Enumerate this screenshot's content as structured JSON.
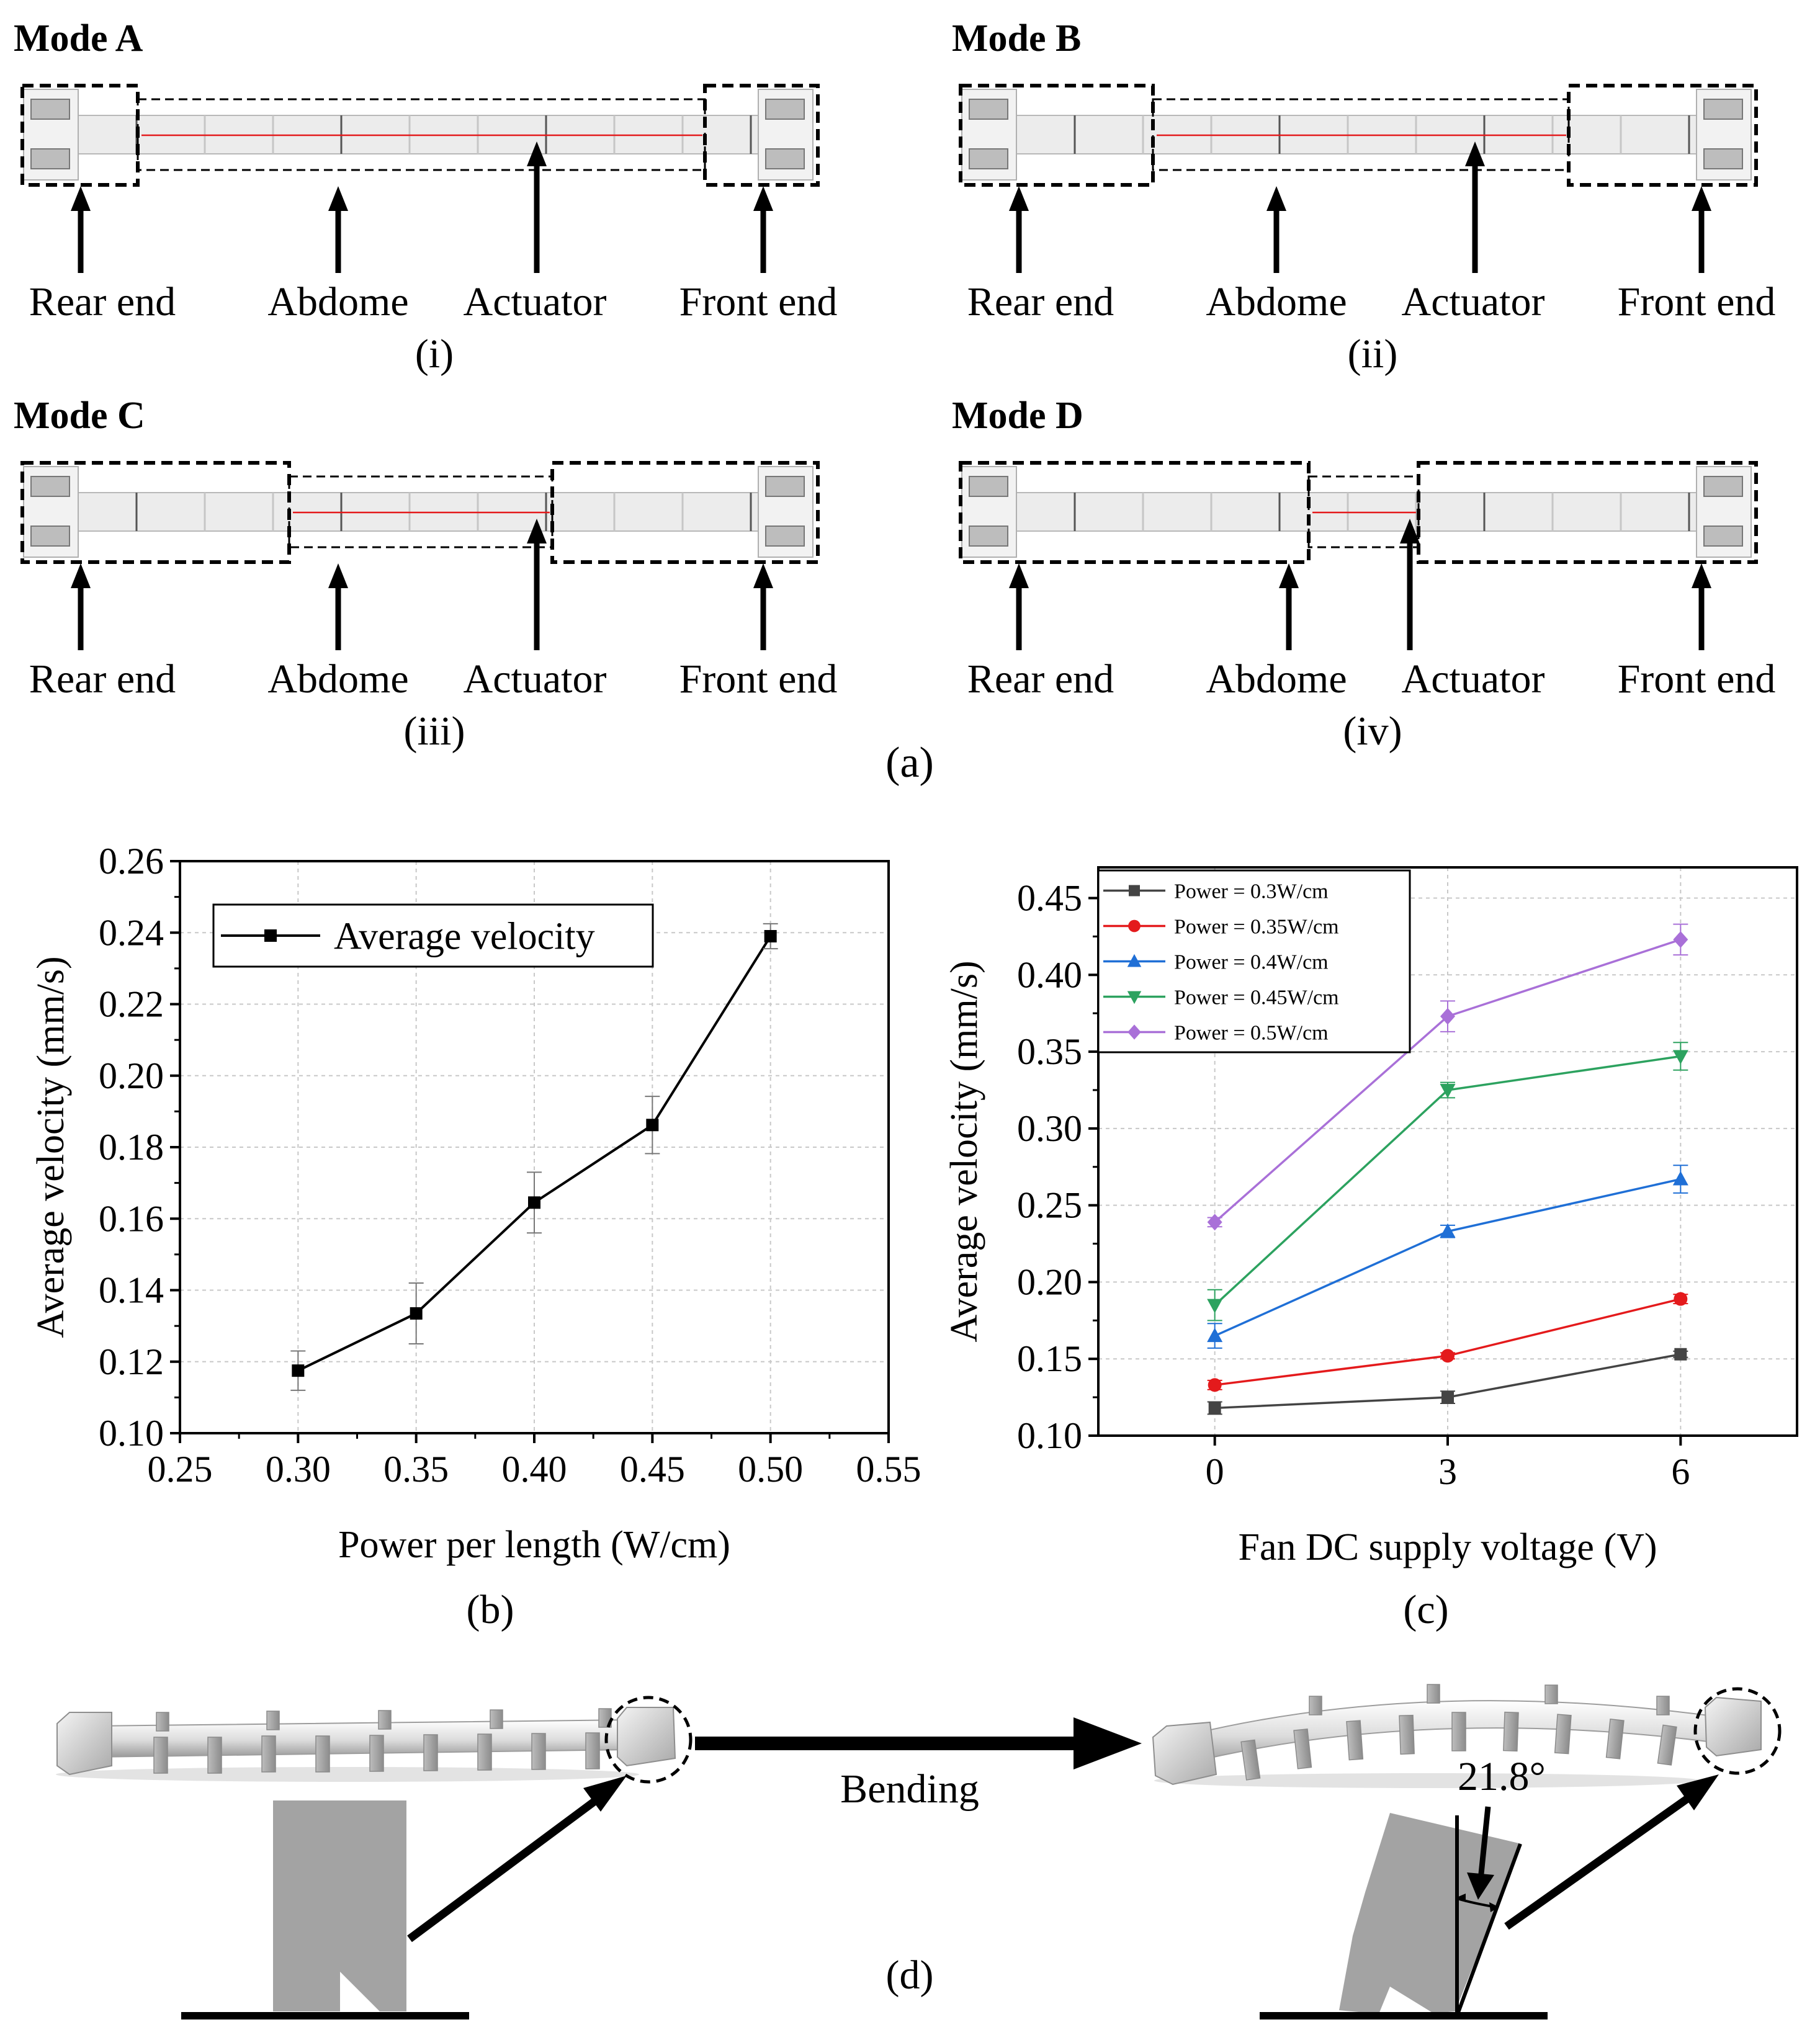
{
  "panel_a": {
    "label": "(a)",
    "modes": [
      {
        "title": "Mode A",
        "sublabel": "(i)"
      },
      {
        "title": "Mode B",
        "sublabel": "(ii)"
      },
      {
        "title": "Mode C",
        "sublabel": "(iii)"
      },
      {
        "title": "Mode D",
        "sublabel": "(iv)"
      }
    ],
    "part_labels": {
      "rear": "Rear end",
      "abdome": "Abdome",
      "actuator": "Actuator",
      "front": "Front end"
    }
  },
  "panel_d": {
    "label": "(d)",
    "bending_label": "Bending",
    "angle_label": "21.8°"
  },
  "colors": {
    "black": "#000000",
    "red": "#e41a1c",
    "blue": "#1f6fd6",
    "green": "#2ca25f",
    "purple": "#a970d8",
    "grey": "#444444"
  },
  "chart_data": [
    {
      "id": "b",
      "label": "(b)",
      "type": "line",
      "xlabel": "Power per length (W/cm)",
      "ylabel": "Average velocity (mm/s)",
      "xlim": [
        0.25,
        0.55
      ],
      "ylim": [
        0.1,
        0.26
      ],
      "x_ticks": [
        "0.25",
        "0.30",
        "0.35",
        "0.40",
        "0.45",
        "0.50",
        "0.55"
      ],
      "y_ticks": [
        "0.10",
        "0.12",
        "0.14",
        "0.16",
        "0.18",
        "0.20",
        "0.22",
        "0.24",
        "0.26"
      ],
      "grid": true,
      "legend_position": "top-left",
      "series": [
        {
          "name": "Average velocity",
          "color": "#000000",
          "marker": "square",
          "x": [
            0.3,
            0.35,
            0.4,
            0.45,
            0.5
          ],
          "y": [
            0.1175,
            0.1335,
            0.1645,
            0.1862,
            0.239
          ],
          "err": [
            0.0055,
            0.0085,
            0.0085,
            0.008,
            0.0035
          ]
        }
      ]
    },
    {
      "id": "c",
      "label": "(c)",
      "type": "line",
      "xlabel": "Fan DC supply voltage (V)",
      "ylabel": "Average velocity (mm/s)",
      "xlim": [
        -1.5,
        7.5
      ],
      "ylim": [
        0.1,
        0.47
      ],
      "x_ticks": [
        "0",
        "3",
        "6"
      ],
      "x_tick_values": [
        0,
        3,
        6
      ],
      "y_ticks": [
        "0.10",
        "0.15",
        "0.20",
        "0.25",
        "0.30",
        "0.35",
        "0.40",
        "0.45"
      ],
      "grid": true,
      "legend_position": "top-left",
      "series": [
        {
          "name": "Power = 0.3W/cm",
          "color": "#444444",
          "marker": "square",
          "x": [
            0,
            3,
            6
          ],
          "y": [
            0.118,
            0.125,
            0.153
          ],
          "err": [
            0.004,
            0.004,
            0.002
          ]
        },
        {
          "name": "Power = 0.35W/cm",
          "color": "#e41a1c",
          "marker": "circle",
          "x": [
            0,
            3,
            6
          ],
          "y": [
            0.133,
            0.152,
            0.189
          ],
          "err": [
            0.003,
            0.002,
            0.003
          ]
        },
        {
          "name": "Power = 0.4W/cm",
          "color": "#1f6fd6",
          "marker": "triangle-up",
          "x": [
            0,
            3,
            6
          ],
          "y": [
            0.165,
            0.233,
            0.267
          ],
          "err": [
            0.008,
            0.004,
            0.009
          ]
        },
        {
          "name": "Power = 0.45W/cm",
          "color": "#2ca25f",
          "marker": "triangle-down",
          "x": [
            0,
            3,
            6
          ],
          "y": [
            0.185,
            0.325,
            0.347
          ],
          "err": [
            0.01,
            0.005,
            0.009
          ]
        },
        {
          "name": "Power = 0.5W/cm",
          "color": "#a970d8",
          "marker": "diamond",
          "x": [
            0,
            3,
            6
          ],
          "y": [
            0.239,
            0.373,
            0.423
          ],
          "err": [
            0.003,
            0.01,
            0.01
          ]
        }
      ]
    }
  ]
}
